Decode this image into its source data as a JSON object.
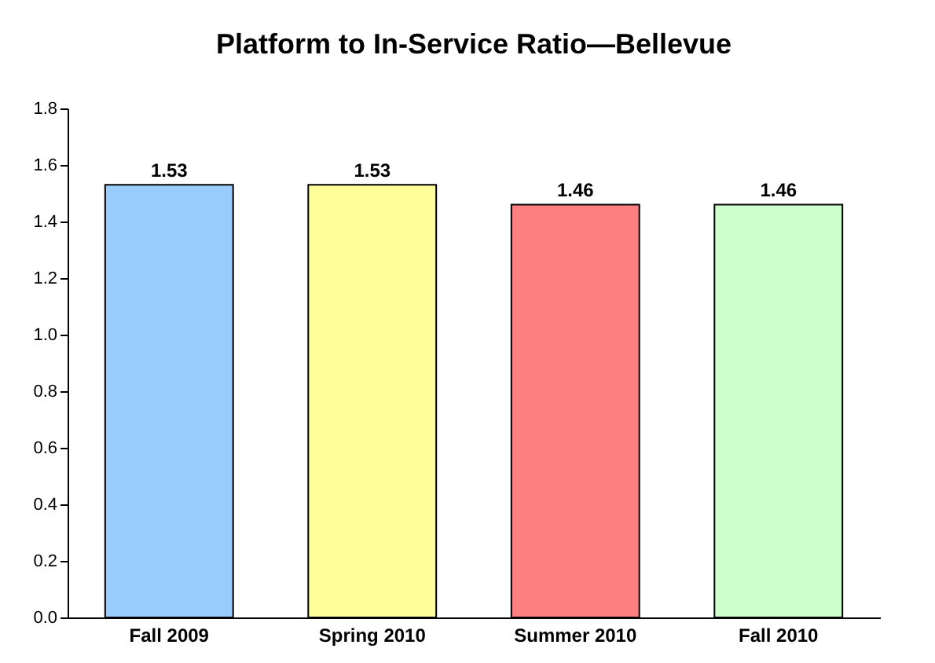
{
  "chart_data": {
    "type": "bar",
    "title": "Platform to In-Service Ratio—Bellevue",
    "categories": [
      "Fall 2009",
      "Spring 2010",
      "Summer 2010",
      "Fall 2010"
    ],
    "values": [
      1.53,
      1.53,
      1.46,
      1.46
    ],
    "colors": [
      "#99ccff",
      "#ffff99",
      "#ff8080",
      "#ccffcc"
    ],
    "ylim": [
      0,
      1.8
    ],
    "yticks": [
      {
        "value": 0,
        "label": "0.0"
      },
      {
        "value": 0.2,
        "label": "0.2"
      },
      {
        "value": 0.4,
        "label": "0.4"
      },
      {
        "value": 0.6,
        "label": "0.6"
      },
      {
        "value": 0.8,
        "label": "0.8"
      },
      {
        "value": 1.0,
        "label": "1.0"
      },
      {
        "value": 1.2,
        "label": "1.2"
      },
      {
        "value": 1.4,
        "label": "1.4"
      },
      {
        "value": 1.6,
        "label": "1.6"
      },
      {
        "value": 1.8,
        "label": "1.8"
      }
    ],
    "data_labels": true,
    "grid": false
  }
}
